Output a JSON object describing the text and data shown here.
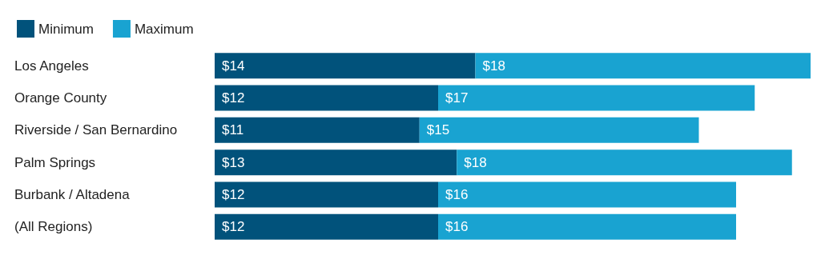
{
  "chart_data": {
    "type": "bar",
    "orientation": "horizontal",
    "stacked": true,
    "legend": "top left",
    "categories": [
      "Los Angeles",
      "Orange County",
      "Riverside / San Bernardino",
      "Palm Springs",
      "Burbank / Altadena",
      "(All Regions)"
    ],
    "series": [
      {
        "name": "Minimum",
        "color": "#01527b",
        "values": [
          14,
          12,
          11,
          13,
          12,
          12
        ],
        "value_labels": [
          "$14",
          "$12",
          "$11",
          "$13",
          "$12",
          "$12"
        ]
      },
      {
        "name": "Maximum",
        "color": "#19a3d1",
        "values": [
          18,
          17,
          15,
          18,
          16,
          16
        ],
        "value_labels": [
          "$18",
          "$17",
          "$15",
          "$18",
          "$16",
          "$16"
        ]
      }
    ]
  }
}
